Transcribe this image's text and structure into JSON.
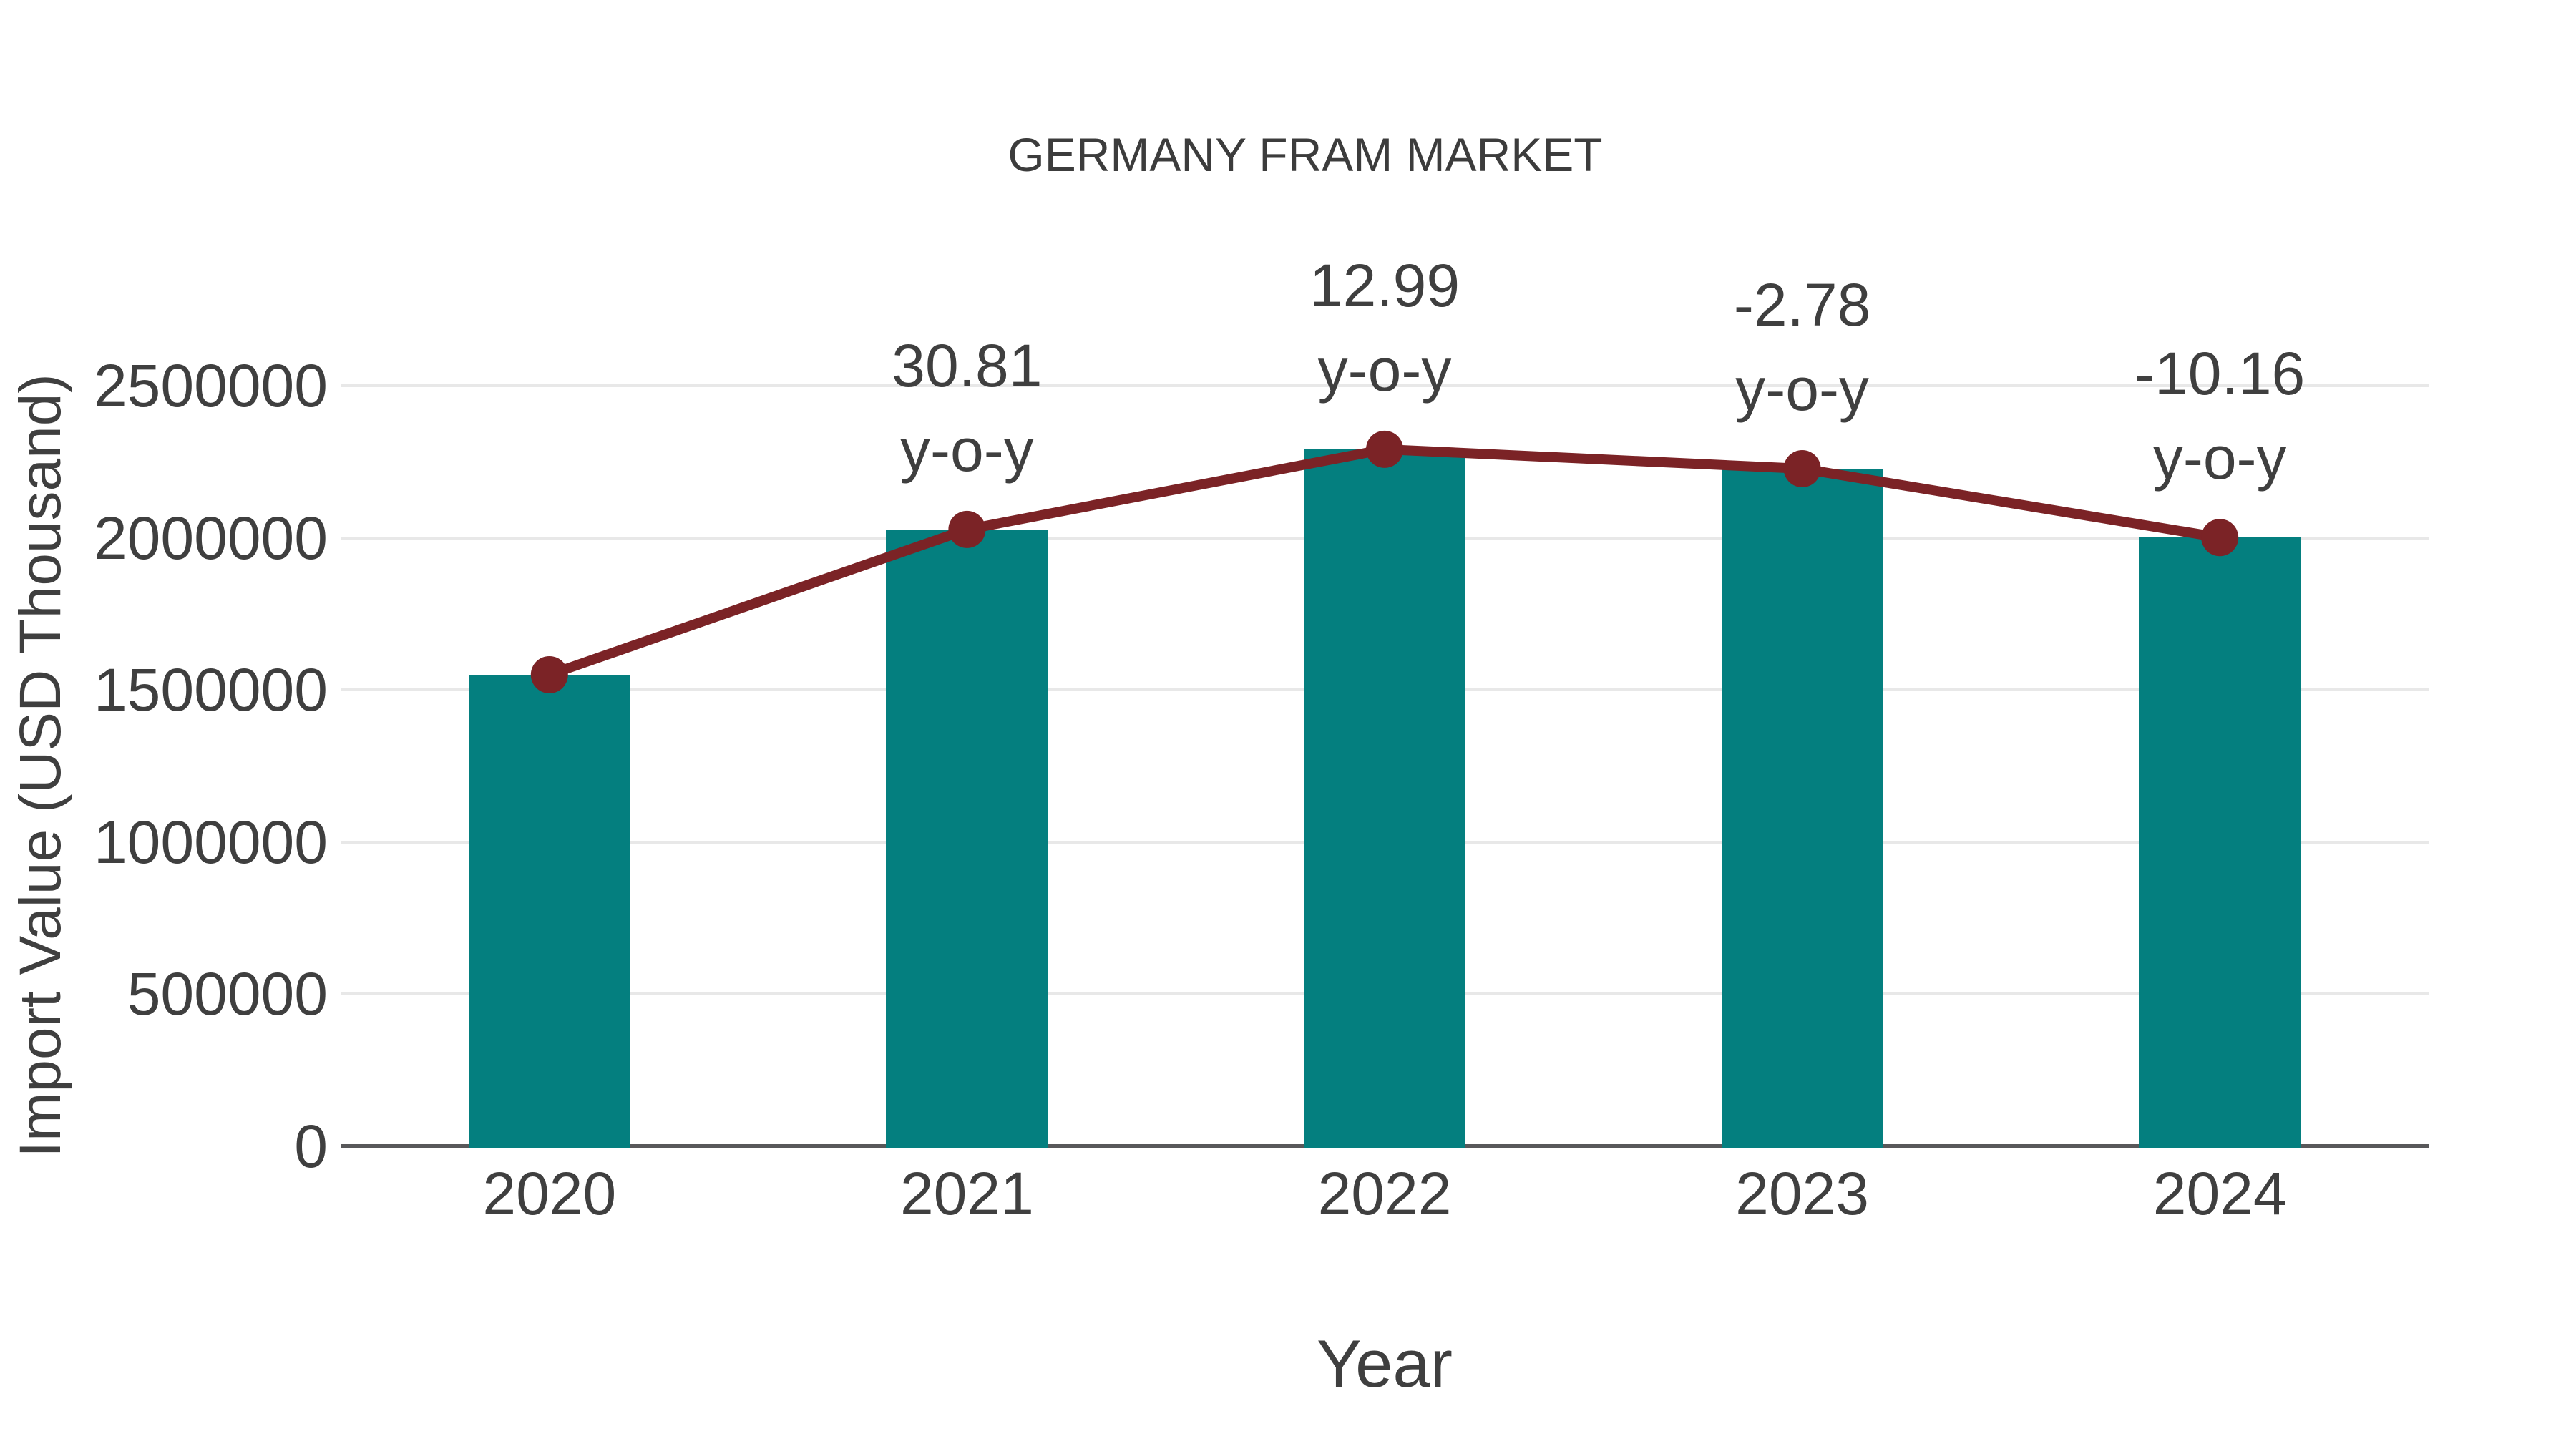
{
  "chart_data": {
    "type": "bar",
    "title": "GERMANY FRAM MARKET",
    "xlabel": "Year",
    "ylabel": "Import Value (USD Thousand)",
    "categories": [
      "2020",
      "2021",
      "2022",
      "2023",
      "2024"
    ],
    "values": [
      1550000,
      2027556,
      2290936,
      2227247,
      2000960
    ],
    "line_overlay": {
      "description": "trend line with round markers on bar tops",
      "values": [
        1550000,
        2027556,
        2290936,
        2227247,
        2000960
      ]
    },
    "yoy_labels": [
      "",
      "30.81",
      "12.99",
      "-2.78",
      "-10.16"
    ],
    "yoy_suffix": "y-o-y",
    "yticks": [
      0,
      500000,
      1000000,
      1500000,
      2000000,
      2500000
    ],
    "ylim": [
      0,
      2650000
    ],
    "grid": true,
    "legend": false,
    "colors": {
      "bar": "#047f7f",
      "line": "#7b2326",
      "marker": "#7b2326",
      "grid": "#e8e8e8",
      "axis": "#58585a",
      "text": "#3f3f3f",
      "background": "#ffffff"
    }
  }
}
